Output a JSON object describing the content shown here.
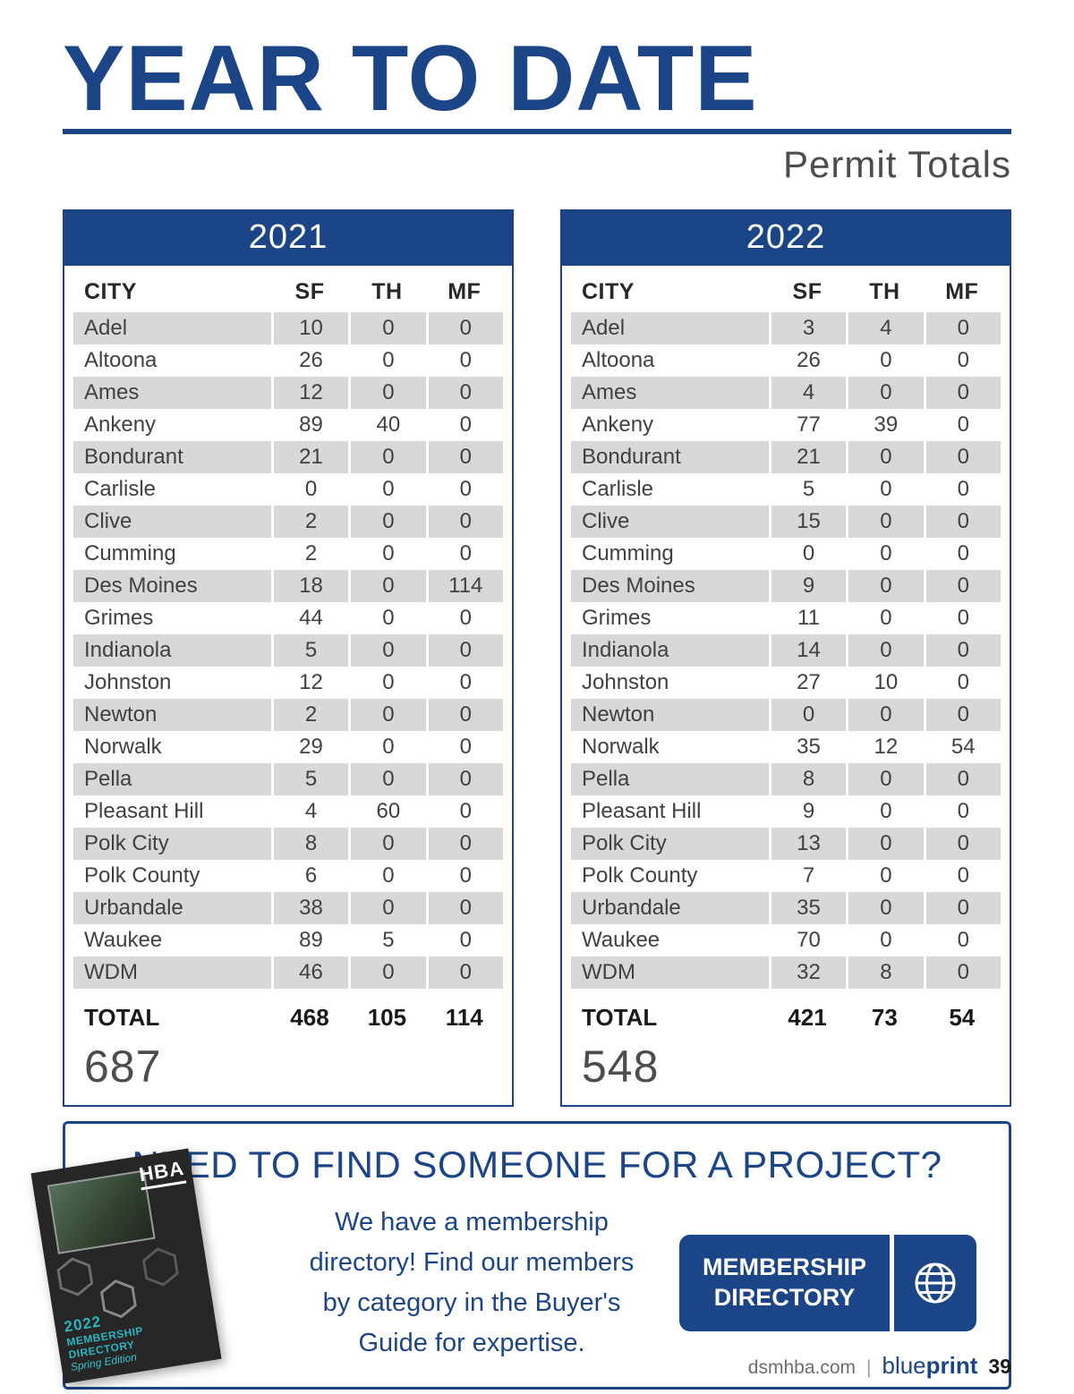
{
  "page": {
    "title": "YEAR TO DATE",
    "subtitle": "Permit Totals"
  },
  "colors": {
    "navy": "#1c4587",
    "row_gray": "#d8d8d9",
    "teal_cover_text": "#2bb3c0"
  },
  "tables": [
    {
      "year": "2021",
      "columns": [
        "CITY",
        "SF",
        "TH",
        "MF"
      ],
      "rows": [
        [
          "Adel",
          "10",
          "0",
          "0"
        ],
        [
          "Altoona",
          "26",
          "0",
          "0"
        ],
        [
          "Ames",
          "12",
          "0",
          "0"
        ],
        [
          "Ankeny",
          "89",
          "40",
          "0"
        ],
        [
          "Bondurant",
          "21",
          "0",
          "0"
        ],
        [
          "Carlisle",
          "0",
          "0",
          "0"
        ],
        [
          "Clive",
          "2",
          "0",
          "0"
        ],
        [
          "Cumming",
          "2",
          "0",
          "0"
        ],
        [
          "Des Moines",
          "18",
          "0",
          "114"
        ],
        [
          "Grimes",
          "44",
          "0",
          "0"
        ],
        [
          "Indianola",
          "5",
          "0",
          "0"
        ],
        [
          "Johnston",
          "12",
          "0",
          "0"
        ],
        [
          "Newton",
          "2",
          "0",
          "0"
        ],
        [
          "Norwalk",
          "29",
          "0",
          "0"
        ],
        [
          "Pella",
          "5",
          "0",
          "0"
        ],
        [
          "Pleasant Hill",
          "4",
          "60",
          "0"
        ],
        [
          "Polk City",
          "8",
          "0",
          "0"
        ],
        [
          "Polk County",
          "6",
          "0",
          "0"
        ],
        [
          "Urbandale",
          "38",
          "0",
          "0"
        ],
        [
          "Waukee",
          "89",
          "5",
          "0"
        ],
        [
          "WDM",
          "46",
          "0",
          "0"
        ]
      ],
      "total_label": "TOTAL",
      "totals": [
        "468",
        "105",
        "114"
      ],
      "grand_total": "687"
    },
    {
      "year": "2022",
      "columns": [
        "CITY",
        "SF",
        "TH",
        "MF"
      ],
      "rows": [
        [
          "Adel",
          "3",
          "4",
          "0"
        ],
        [
          "Altoona",
          "26",
          "0",
          "0"
        ],
        [
          "Ames",
          "4",
          "0",
          "0"
        ],
        [
          "Ankeny",
          "77",
          "39",
          "0"
        ],
        [
          "Bondurant",
          "21",
          "0",
          "0"
        ],
        [
          "Carlisle",
          "5",
          "0",
          "0"
        ],
        [
          "Clive",
          "15",
          "0",
          "0"
        ],
        [
          "Cumming",
          "0",
          "0",
          "0"
        ],
        [
          "Des Moines",
          "9",
          "0",
          "0"
        ],
        [
          "Grimes",
          "11",
          "0",
          "0"
        ],
        [
          "Indianola",
          "14",
          "0",
          "0"
        ],
        [
          "Johnston",
          "27",
          "10",
          "0"
        ],
        [
          "Newton",
          "0",
          "0",
          "0"
        ],
        [
          "Norwalk",
          "35",
          "12",
          "54"
        ],
        [
          "Pella",
          "8",
          "0",
          "0"
        ],
        [
          "Pleasant Hill",
          "9",
          "0",
          "0"
        ],
        [
          "Polk City",
          "13",
          "0",
          "0"
        ],
        [
          "Polk County",
          "7",
          "0",
          "0"
        ],
        [
          "Urbandale",
          "35",
          "0",
          "0"
        ],
        [
          "Waukee",
          "70",
          "0",
          "0"
        ],
        [
          "WDM",
          "32",
          "8",
          "0"
        ]
      ],
      "total_label": "TOTAL",
      "totals": [
        "421",
        "73",
        "54"
      ],
      "grand_total": "548"
    }
  ],
  "promo": {
    "headline": "NEED TO FIND SOMEONE FOR A PROJECT?",
    "body_lines": [
      "We have a membership",
      "directory! Find our members",
      "by category in the Buyer's",
      "Guide for expertise."
    ],
    "button_line1": "MEMBERSHIP",
    "button_line2": "DIRECTORY",
    "cover": {
      "logo": "HBA",
      "year": "2022",
      "line1": "MEMBERSHIP",
      "line2": "DIRECTORY",
      "edition": "Spring Edition"
    }
  },
  "footer": {
    "site": "dsmhba.com",
    "sep": "|",
    "brand_light": "blue",
    "brand_bold": "print",
    "page_number": "39"
  }
}
